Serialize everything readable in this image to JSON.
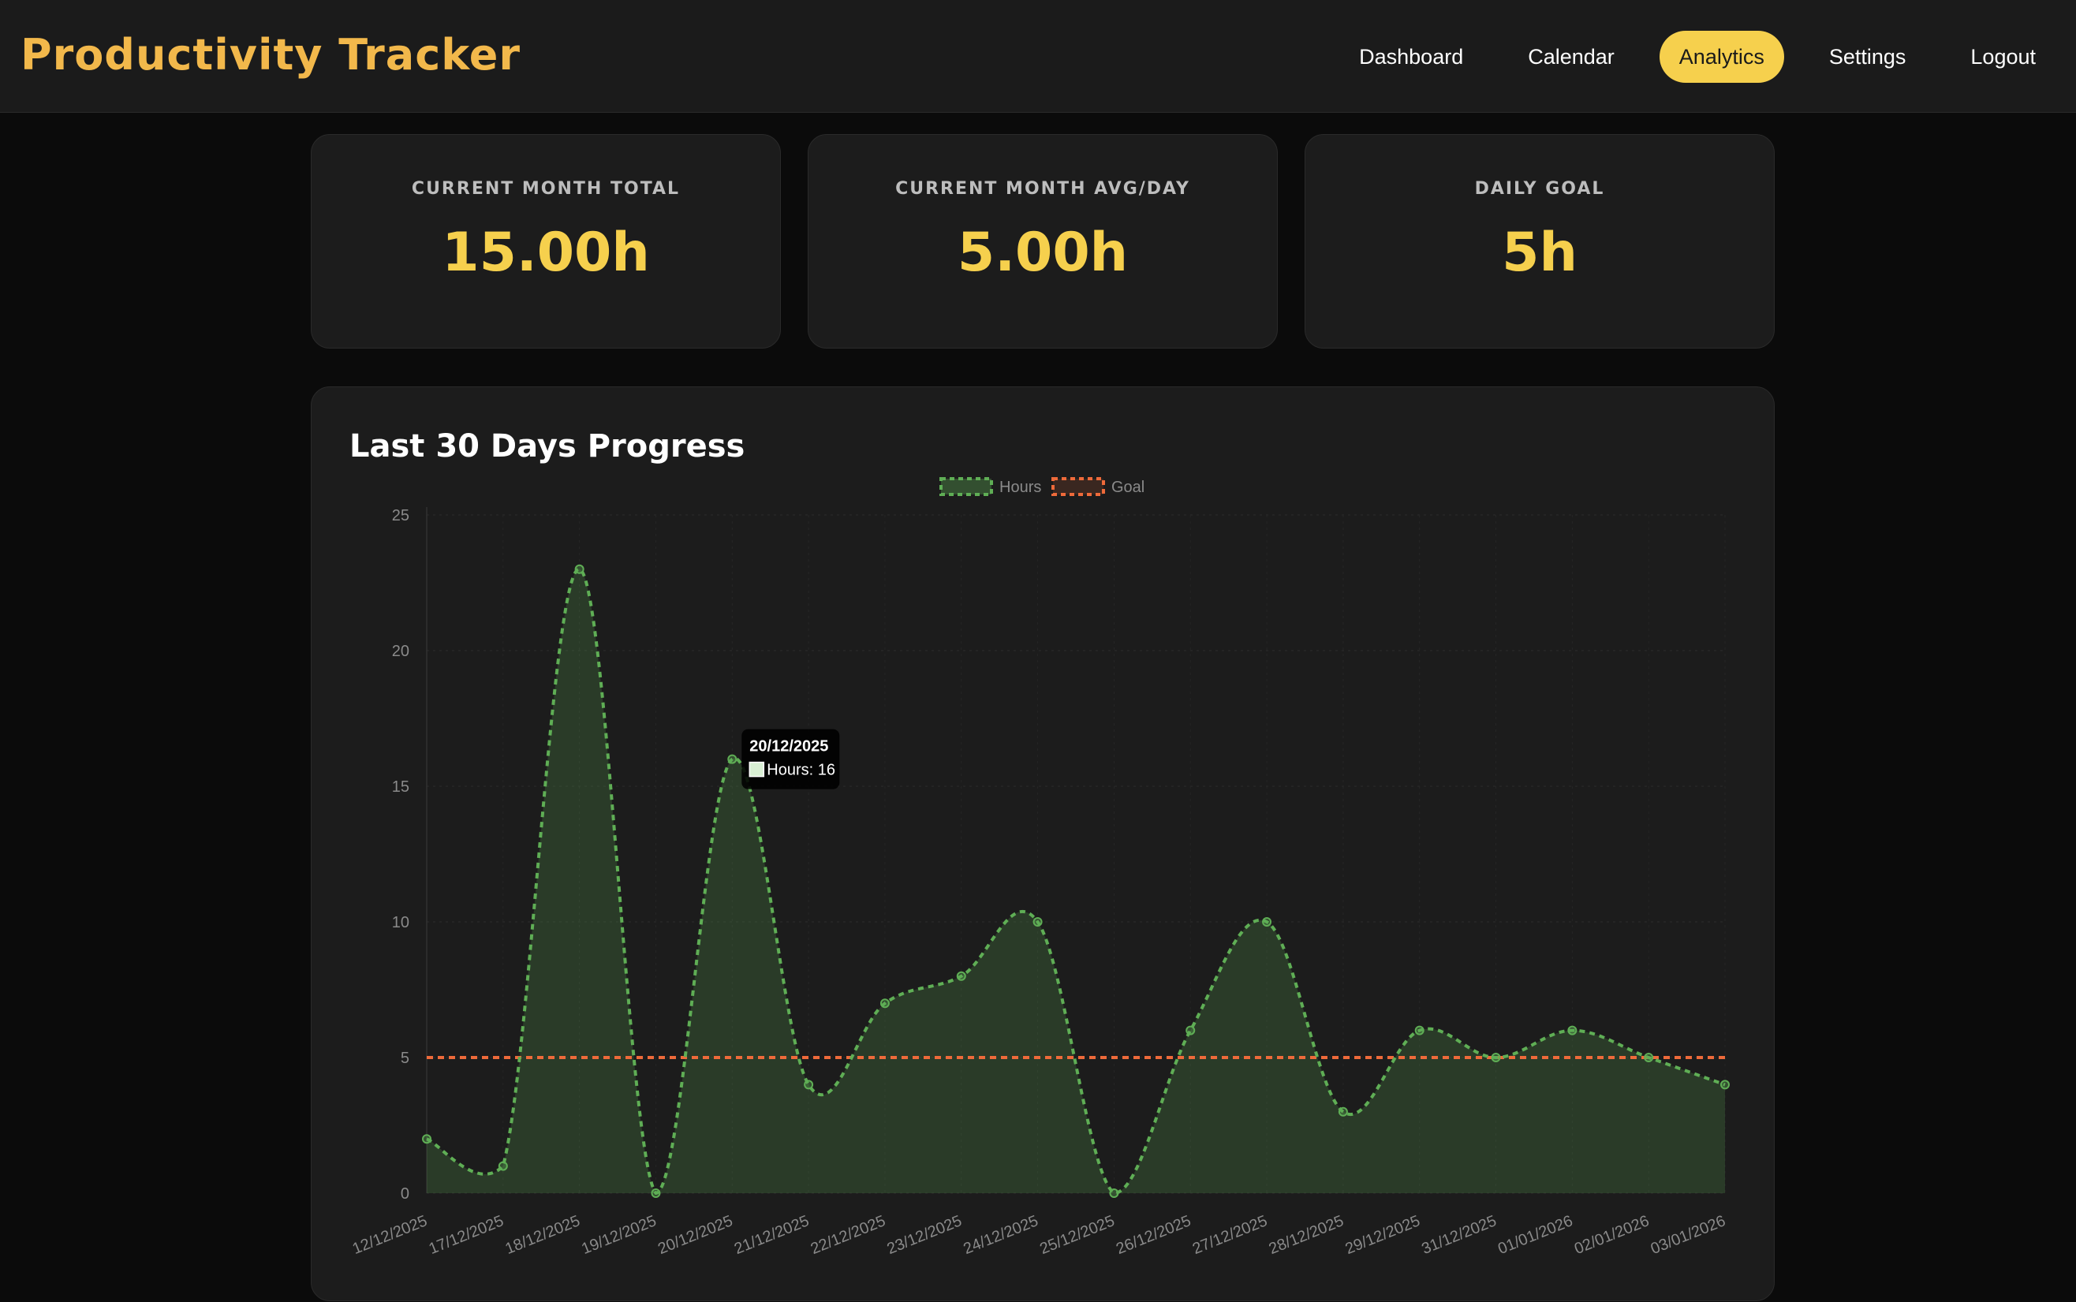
{
  "header": {
    "title": "Productivity Tracker",
    "nav": [
      {
        "label": "Dashboard",
        "active": false
      },
      {
        "label": "Calendar",
        "active": false
      },
      {
        "label": "Analytics",
        "active": true
      },
      {
        "label": "Settings",
        "active": false
      },
      {
        "label": "Logout",
        "active": false
      }
    ]
  },
  "stats": [
    {
      "label": "CURRENT MONTH TOTAL",
      "value": "15.00h"
    },
    {
      "label": "CURRENT MONTH AVG/DAY",
      "value": "5.00h"
    },
    {
      "label": "DAILY GOAL",
      "value": "5h"
    }
  ],
  "chart_card": {
    "title": "Last 30 Days Progress"
  },
  "colors": {
    "accent": "#f6d04d",
    "brand": "#f2b84b",
    "hours": "#5fae55",
    "goal": "#ee6a3a"
  },
  "chart_data": {
    "type": "line",
    "title": "Last 30 Days Progress",
    "categories": [
      "12/12/2025",
      "17/12/2025",
      "18/12/2025",
      "19/12/2025",
      "20/12/2025",
      "21/12/2025",
      "22/12/2025",
      "23/12/2025",
      "24/12/2025",
      "25/12/2025",
      "26/12/2025",
      "27/12/2025",
      "28/12/2025",
      "29/12/2025",
      "31/12/2025",
      "01/01/2026",
      "02/01/2026",
      "03/01/2026"
    ],
    "series": [
      {
        "name": "Hours",
        "values": [
          2,
          1,
          23,
          0,
          16,
          4,
          7,
          8,
          10,
          0,
          6,
          10,
          3,
          6,
          5,
          6,
          5,
          4
        ],
        "fill": true,
        "dashed": true
      },
      {
        "name": "Goal",
        "values": [
          5,
          5,
          5,
          5,
          5,
          5,
          5,
          5,
          5,
          5,
          5,
          5,
          5,
          5,
          5,
          5,
          5,
          5
        ],
        "dashed": true
      }
    ],
    "yticks": [
      0,
      5,
      10,
      15,
      20,
      25
    ],
    "ylim": [
      0,
      25
    ],
    "grid": true,
    "legend": "top-center",
    "tooltip": {
      "title": "20/12/2025",
      "body": "Hours: 16"
    }
  }
}
